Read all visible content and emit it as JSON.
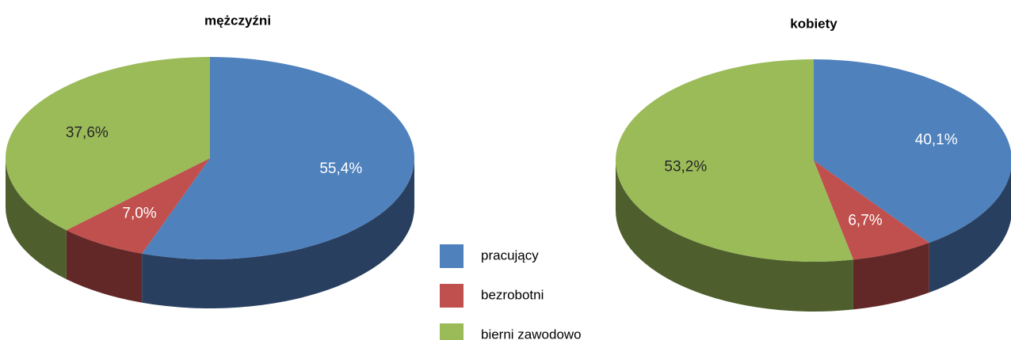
{
  "chart_data": [
    {
      "type": "pie",
      "title": "mężczyźni",
      "categories": [
        "pracujący",
        "bezrobotni",
        "bierni zawodowo"
      ],
      "values": [
        55.4,
        7.0,
        37.6
      ],
      "value_labels": [
        "55,4%",
        "7,0%",
        "37,6%"
      ],
      "colors": [
        "#4f81bd",
        "#c0504d",
        "#9bbb59"
      ],
      "side_colors": [
        "#283f5f",
        "#622827",
        "#4e5e2d"
      ],
      "label_colors": [
        "#ffffff",
        "#ffffff",
        "#262626"
      ]
    },
    {
      "type": "pie",
      "title": "kobiety",
      "categories": [
        "pracujący",
        "bezrobotni",
        "bierni zawodowo"
      ],
      "values": [
        40.1,
        6.7,
        53.2
      ],
      "value_labels": [
        "40,1%",
        "6,7%",
        "53,2%"
      ],
      "colors": [
        "#4f81bd",
        "#c0504d",
        "#9bbb59"
      ],
      "side_colors": [
        "#283f5f",
        "#622827",
        "#4e5e2d"
      ],
      "label_colors": [
        "#ffffff",
        "#ffffff",
        "#262626"
      ]
    }
  ]
}
